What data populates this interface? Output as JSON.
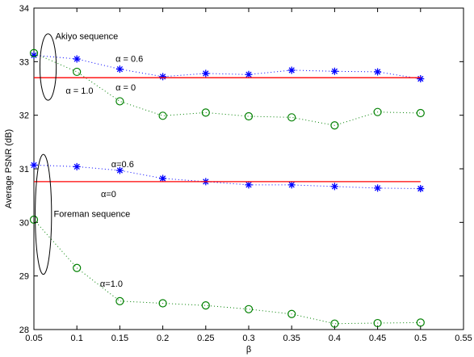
{
  "chart_data": {
    "type": "line",
    "title": "",
    "xlabel": "β",
    "ylabel": "Average PSNR (dB)",
    "xlim": [
      0.05,
      0.55
    ],
    "ylim": [
      28,
      34
    ],
    "xticks": [
      "0.05",
      "0.1",
      "0.15",
      "0.2",
      "0.25",
      "0.3",
      "0.35",
      "0.4",
      "0.45",
      "0.5",
      "0.55"
    ],
    "yticks": [
      "28",
      "29",
      "30",
      "31",
      "32",
      "33",
      "34"
    ],
    "grid": false,
    "legend": "none",
    "x": [
      0.05,
      0.1,
      0.15,
      0.2,
      0.25,
      0.3,
      0.35,
      0.4,
      0.45,
      0.5
    ],
    "series": [
      {
        "name": "",
        "group": "Akiyo",
        "marker": "star",
        "color": "#0000ff",
        "style": "dotted",
        "values": [
          33.12,
          33.05,
          32.86,
          32.72,
          32.78,
          32.76,
          32.84,
          32.82,
          32.81,
          32.68
        ]
      },
      {
        "name": "",
        "group": "Akiyo",
        "marker": "circle",
        "color": "#008000",
        "style": "dotted",
        "values": [
          33.16,
          32.81,
          32.26,
          31.99,
          32.05,
          31.98,
          31.96,
          31.81,
          32.06,
          32.04
        ]
      },
      {
        "name": "",
        "group": "Akiyo",
        "marker": "none",
        "color": "#ff0000",
        "style": "solid",
        "values": [
          32.7,
          32.7,
          32.7,
          32.7,
          32.7,
          32.7,
          32.7,
          32.7,
          32.7,
          32.7
        ]
      },
      {
        "name": "",
        "group": "Foreman",
        "marker": "star",
        "color": "#0000ff",
        "style": "dotted",
        "values": [
          31.07,
          31.04,
          30.97,
          30.82,
          30.76,
          30.7,
          30.7,
          30.67,
          30.64,
          30.63
        ]
      },
      {
        "name": "",
        "group": "Foreman",
        "marker": "circle",
        "color": "#008000",
        "style": "dotted",
        "values": [
          30.05,
          29.15,
          28.53,
          28.49,
          28.45,
          28.38,
          28.29,
          28.11,
          28.12,
          28.13
        ]
      },
      {
        "name": "",
        "group": "Foreman",
        "marker": "none",
        "color": "#ff0000",
        "style": "solid",
        "values": [
          30.76,
          30.76,
          30.76,
          30.76,
          30.76,
          30.76,
          30.76,
          30.76,
          30.76,
          30.76
        ]
      }
    ],
    "annotations": [
      {
        "id": "akiyo-seq",
        "text": "Akiyo sequence",
        "x": 0.075,
        "y": 33.42
      },
      {
        "id": "akiyo-a06",
        "text": "α = 0.6",
        "x": 0.145,
        "y": 33.0
      },
      {
        "id": "akiyo-a0",
        "text": "α = 0",
        "x": 0.145,
        "y": 32.46
      },
      {
        "id": "akiyo-a1",
        "text": "α = 1.0",
        "x": 0.087,
        "y": 32.4
      },
      {
        "id": "foreman-a06",
        "text": "α=0.6",
        "x": 0.14,
        "y": 31.03
      },
      {
        "id": "foreman-a0",
        "text": "α=0",
        "x": 0.128,
        "y": 30.47
      },
      {
        "id": "foreman-seq",
        "text": "Foreman sequence",
        "x": 0.073,
        "y": 30.1
      },
      {
        "id": "foreman-a1",
        "text": "α=1.0",
        "x": 0.127,
        "y": 28.8
      }
    ],
    "ellipses": [
      {
        "id": "akiyo-ellipse",
        "cx": 0.0665,
        "cy": 32.9,
        "rx": 0.0095,
        "ry": 0.62
      },
      {
        "id": "foreman-ellipse",
        "cx": 0.061,
        "cy": 30.15,
        "rx": 0.0095,
        "ry": 1.12
      }
    ],
    "colors": {
      "star": "#0000ff",
      "circle": "#008000",
      "reference": "#ff0000",
      "axis": "#000000"
    }
  }
}
